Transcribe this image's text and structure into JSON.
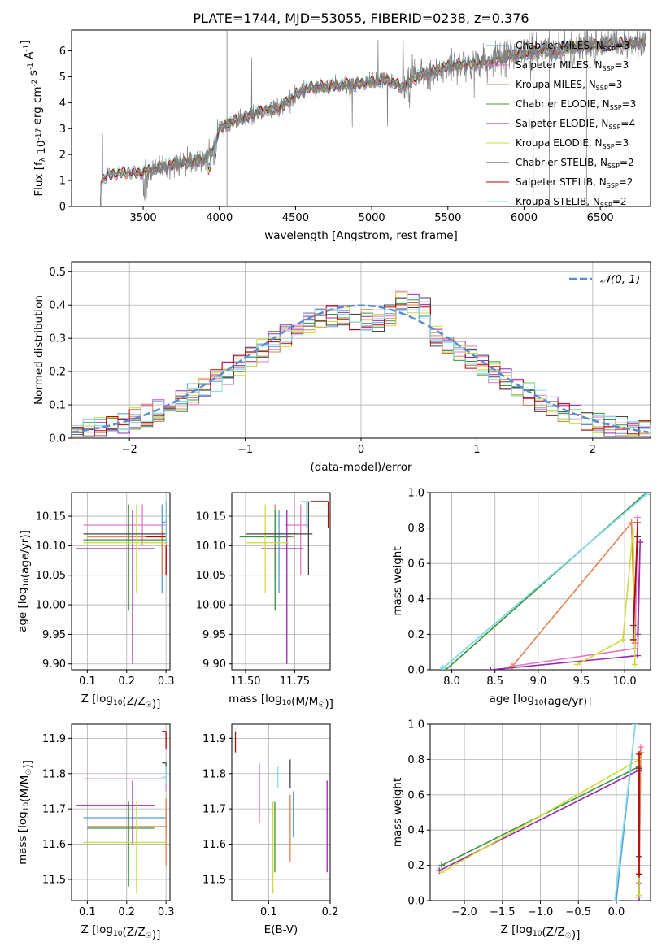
{
  "title": "PLATE=1744, MJD=53055, FIBERID=0238, z=0.376",
  "colors": {
    "Chabrier MILES": "#5b9bd5",
    "Salpeter MILES": "#e377c2",
    "Kroupa MILES": "#dd8452",
    "Chabrier ELODIE": "#3a923a",
    "Salpeter ELODIE": "#9c27b0",
    "Kroupa ELODIE": "#cddc39",
    "Chabrier STELIB": "#444444",
    "Salpeter STELIB": "#c00000",
    "Kroupa STELIB": "#80deea",
    "data": "#808080",
    "gaussian": "#5b8bd0"
  },
  "chart_data": [
    {
      "id": "spectrum",
      "type": "line",
      "xlabel": "wavelength [Angstrom, rest frame]",
      "ylabel": "Flux [f_λ 10^-17 erg cm^-2 s^-1 A^-1]",
      "xlim": [
        3030,
        6830
      ],
      "ylim": [
        0,
        6.8
      ],
      "xticks": [
        3500,
        4000,
        4500,
        5000,
        5500,
        6000,
        6500
      ],
      "yticks": [
        0,
        1,
        2,
        3,
        4,
        5,
        6
      ],
      "grid": false,
      "legend_position": "top-right",
      "legend": [
        {
          "name": "Chabrier MILES",
          "nssp": 3
        },
        {
          "name": "Salpeter MILES",
          "nssp": 3
        },
        {
          "name": "Kroupa MILES",
          "nssp": 3
        },
        {
          "name": "Chabrier ELODIE",
          "nssp": 3
        },
        {
          "name": "Salpeter ELODIE",
          "nssp": 4
        },
        {
          "name": "Kroupa ELODIE",
          "nssp": 3
        },
        {
          "name": "Chabrier STELIB",
          "nssp": 2
        },
        {
          "name": "Salpeter STELIB",
          "nssp": 2
        },
        {
          "name": "Kroupa STELIB",
          "nssp": 2
        }
      ],
      "model_continuum": {
        "x": [
          3220,
          3260,
          3350,
          3500,
          3600,
          3700,
          3800,
          3900,
          3950,
          4000,
          4100,
          4200,
          4300,
          4400,
          4500,
          4600,
          4700,
          4800,
          4900,
          5000,
          5100,
          5200,
          5300,
          5400,
          5500,
          5600,
          5700,
          5800,
          5900,
          6000,
          6100,
          6200,
          6300,
          6400,
          6500,
          6600,
          6700,
          6800
        ],
        "y": [
          0.9,
          1.2,
          1.3,
          1.3,
          1.5,
          1.6,
          1.7,
          1.8,
          2.1,
          3.0,
          3.3,
          3.5,
          3.7,
          3.8,
          4.3,
          4.6,
          4.6,
          4.7,
          4.7,
          4.8,
          4.9,
          4.6,
          5.0,
          5.2,
          5.4,
          5.5,
          5.5,
          5.6,
          5.8,
          5.9,
          6.0,
          6.0,
          6.1,
          6.2,
          6.2,
          6.3,
          6.3,
          6.3
        ]
      }
    },
    {
      "id": "residuals",
      "type": "line",
      "xlabel": "(data-model)/error",
      "ylabel": "Normed distribution",
      "xlim": [
        -2.5,
        2.5
      ],
      "ylim": [
        0,
        0.53
      ],
      "xticks": [
        -2,
        -1,
        0,
        1,
        2
      ],
      "yticks": [
        0.0,
        0.1,
        0.2,
        0.3,
        0.4,
        0.5
      ],
      "grid": true,
      "legend_position": "top-right",
      "legend_label": "𝒩(0, 1)",
      "histogram_bin_width": 0.1,
      "gaussian": {
        "mean": 0,
        "sigma": 1
      }
    },
    {
      "id": "age-vs-Z",
      "type": "scatter",
      "xlabel": "Z [log10(Z/Z☉)]",
      "ylabel": "age [log10(age/yr)]",
      "xlim": [
        0.06,
        0.31
      ],
      "ylim": [
        9.89,
        10.19
      ],
      "xticks": [
        0.1,
        0.2,
        0.3
      ],
      "yticks": [
        9.9,
        9.95,
        10.0,
        10.05,
        10.1,
        10.15
      ],
      "grid": true,
      "points": [
        {
          "model": "Chabrier MILES",
          "x": 0.29,
          "y": 10.14,
          "x_lo": 0.29,
          "x_hi": 0.3,
          "y_lo": 10.02,
          "y_hi": 10.17
        },
        {
          "model": "Salpeter MILES",
          "x": 0.24,
          "y": 10.135,
          "x_lo": 0.09,
          "x_hi": 0.3,
          "y_lo": 10.1,
          "y_hi": 10.17
        },
        {
          "model": "Kroupa MILES",
          "x": 0.29,
          "y": 10.115,
          "x_lo": 0.1,
          "x_hi": 0.3,
          "y_lo": 10.05,
          "y_hi": 10.13
        },
        {
          "model": "Chabrier ELODIE",
          "x": 0.205,
          "y": 10.11,
          "x_lo": 0.09,
          "x_hi": 0.3,
          "y_lo": 9.99,
          "y_hi": 10.17
        },
        {
          "model": "Salpeter ELODIE",
          "x": 0.215,
          "y": 10.095,
          "x_lo": 0.07,
          "x_hi": 0.27,
          "y_lo": 9.9,
          "y_hi": 10.16
        },
        {
          "model": "Kroupa ELODIE",
          "x": 0.225,
          "y": 10.105,
          "x_lo": 0.09,
          "x_hi": 0.3,
          "y_lo": 10.02,
          "y_hi": 10.17
        },
        {
          "model": "Chabrier STELIB",
          "x": 0.3,
          "y": 10.12,
          "x_lo": 0.09,
          "x_hi": 0.3,
          "y_lo": 10.05,
          "y_hi": 10.175
        },
        {
          "model": "Salpeter STELIB",
          "x": 0.3,
          "y": 10.115,
          "x_lo": 0.25,
          "x_hi": 0.3,
          "y_lo": 10.05,
          "y_hi": 10.175
        },
        {
          "model": "Kroupa STELIB",
          "x": 0.3,
          "y": 10.13,
          "x_lo": 0.29,
          "x_hi": 0.3,
          "y_lo": 10.1,
          "y_hi": 10.175
        }
      ]
    },
    {
      "id": "age-vs-mass",
      "type": "scatter",
      "xlabel": "mass [log10(M/M☉)]",
      "ylabel": "",
      "xlim": [
        11.43,
        11.93
      ],
      "ylim": [
        9.89,
        10.19
      ],
      "xticks": [
        11.5,
        11.75
      ],
      "xticklabels": [
        "11.50",
        "11.75"
      ],
      "yticks": [
        9.9,
        9.95,
        10.0,
        10.05,
        10.1,
        10.15
      ],
      "grid": true,
      "points": [
        {
          "model": "Chabrier MILES",
          "x": 11.67,
          "y": 10.12,
          "x_lo": 11.6,
          "x_hi": 11.76,
          "y_lo": 10.02,
          "y_hi": 10.16
        },
        {
          "model": "Salpeter MILES",
          "x": 11.78,
          "y": 10.135,
          "x_lo": 11.7,
          "x_hi": 11.82,
          "y_lo": 10.05,
          "y_hi": 10.17
        },
        {
          "model": "Kroupa MILES",
          "x": 11.65,
          "y": 10.115,
          "x_lo": 11.55,
          "x_hi": 11.75,
          "y_lo": 10.04,
          "y_hi": 10.17
        },
        {
          "model": "Chabrier ELODIE",
          "x": 11.65,
          "y": 10.115,
          "x_lo": 11.47,
          "x_hi": 11.73,
          "y_lo": 9.99,
          "y_hi": 10.16
        },
        {
          "model": "Salpeter ELODIE",
          "x": 11.71,
          "y": 10.095,
          "x_lo": 11.58,
          "x_hi": 11.79,
          "y_lo": 9.9,
          "y_hi": 10.16
        },
        {
          "model": "Kroupa ELODIE",
          "x": 11.6,
          "y": 10.105,
          "x_lo": 11.5,
          "x_hi": 11.72,
          "y_lo": 10.02,
          "y_hi": 10.17
        },
        {
          "model": "Chabrier STELIB",
          "x": 11.82,
          "y": 10.12,
          "x_lo": 11.5,
          "x_hi": 11.84,
          "y_lo": 10.05,
          "y_hi": 10.175
        },
        {
          "model": "Salpeter STELIB",
          "x": 11.92,
          "y": 10.175,
          "x_lo": 11.83,
          "x_hi": 11.92,
          "y_lo": 10.13,
          "y_hi": 10.175
        },
        {
          "model": "Kroupa STELIB",
          "x": 11.81,
          "y": 10.175,
          "x_lo": 11.78,
          "x_hi": 11.83,
          "y_lo": 10.13,
          "y_hi": 10.175
        }
      ]
    },
    {
      "id": "mass-weight-vs-age",
      "type": "line",
      "xlabel": "age [log10(age/yr)]",
      "ylabel": "mass weight",
      "xlim": [
        7.75,
        10.3
      ],
      "ylim": [
        0,
        1.0
      ],
      "xticks": [
        8.0,
        8.5,
        9.0,
        9.5,
        10.0
      ],
      "yticks": [
        0.0,
        0.2,
        0.4,
        0.6,
        0.8,
        1.0
      ],
      "grid": true,
      "series": [
        {
          "name": "Chabrier MILES",
          "x": [
            7.9,
            10.25
          ],
          "y": [
            0.01,
            0.99
          ]
        },
        {
          "name": "Salpeter MILES",
          "x": [
            8.7,
            10.12,
            10.15
          ],
          "y": [
            0.02,
            0.12,
            0.86
          ]
        },
        {
          "name": "Kroupa MILES",
          "x": [
            8.7,
            10.08,
            10.12
          ],
          "y": [
            0.02,
            0.83,
            0.15
          ]
        },
        {
          "name": "Chabrier ELODIE",
          "x": [
            7.93,
            10.25
          ],
          "y": [
            0.0,
            1.0
          ]
        },
        {
          "name": "Salpeter ELODIE",
          "x": [
            8.45,
            10.15,
            10.18,
            10.15
          ],
          "y": [
            0.0,
            0.08,
            0.72,
            0.2
          ]
        },
        {
          "name": "Kroupa ELODIE",
          "x": [
            9.45,
            9.98,
            10.1,
            10.12
          ],
          "y": [
            0.03,
            0.17,
            0.8,
            0.03
          ]
        },
        {
          "name": "Chabrier STELIB",
          "x": [
            10.1,
            10.15
          ],
          "y": [
            0.25,
            0.75
          ]
        },
        {
          "name": "Salpeter STELIB",
          "x": [
            10.1,
            10.15
          ],
          "y": [
            0.17,
            0.83
          ]
        },
        {
          "name": "Kroupa STELIB",
          "x": [
            7.9,
            10.25
          ],
          "y": [
            0.01,
            0.99
          ]
        }
      ]
    },
    {
      "id": "mass-vs-Z",
      "type": "scatter",
      "xlabel": "Z [log10(Z/Z☉)]",
      "ylabel": "mass [log10(M/M☉)]",
      "xlim": [
        0.06,
        0.31
      ],
      "ylim": [
        11.44,
        11.94
      ],
      "xticks": [
        0.1,
        0.2,
        0.3
      ],
      "yticks": [
        11.5,
        11.6,
        11.7,
        11.8,
        11.9
      ],
      "grid": true,
      "points": [
        {
          "model": "Chabrier MILES",
          "x": 0.3,
          "y": 11.675,
          "x_lo": 0.09,
          "x_hi": 0.3,
          "y_lo": 11.62,
          "y_hi": 11.72
        },
        {
          "model": "Salpeter MILES",
          "x": 0.3,
          "y": 11.785,
          "x_lo": 0.09,
          "x_hi": 0.3,
          "y_lo": 11.75,
          "y_hi": 11.82
        },
        {
          "model": "Kroupa MILES",
          "x": 0.3,
          "y": 11.65,
          "x_lo": 0.1,
          "x_hi": 0.3,
          "y_lo": 11.54,
          "y_hi": 11.73
        },
        {
          "model": "Chabrier ELODIE",
          "x": 0.205,
          "y": 11.645,
          "x_lo": 0.1,
          "x_hi": 0.27,
          "y_lo": 11.48,
          "y_hi": 11.72
        },
        {
          "model": "Salpeter ELODIE",
          "x": 0.215,
          "y": 11.71,
          "x_lo": 0.07,
          "x_hi": 0.27,
          "y_lo": 11.6,
          "y_hi": 11.78
        },
        {
          "model": "Kroupa ELODIE",
          "x": 0.225,
          "y": 11.605,
          "x_lo": 0.09,
          "x_hi": 0.3,
          "y_lo": 11.46,
          "y_hi": 11.72
        },
        {
          "model": "Chabrier STELIB",
          "x": 0.3,
          "y": 11.83,
          "x_lo": 0.29,
          "x_hi": 0.3,
          "y_lo": 11.8,
          "y_hi": 11.83
        },
        {
          "model": "Salpeter STELIB",
          "x": 0.3,
          "y": 11.92,
          "x_lo": 0.29,
          "x_hi": 0.3,
          "y_lo": 11.87,
          "y_hi": 11.92
        },
        {
          "model": "Kroupa STELIB",
          "x": 0.3,
          "y": 11.79,
          "x_lo": 0.29,
          "x_hi": 0.3,
          "y_lo": 11.77,
          "y_hi": 11.82
        }
      ]
    },
    {
      "id": "mass-vs-EBV",
      "type": "scatter",
      "xlabel": "E(B-V)",
      "ylabel": "",
      "xlim": [
        0.04,
        0.2
      ],
      "ylim": [
        11.44,
        11.94
      ],
      "xticks": [
        0.1,
        0.2
      ],
      "yticks": [
        11.5,
        11.6,
        11.7,
        11.8,
        11.9
      ],
      "grid": true,
      "points": [
        {
          "model": "Chabrier MILES",
          "x": 0.14,
          "y": 11.68,
          "y_lo": 11.62,
          "y_hi": 11.75
        },
        {
          "model": "Salpeter MILES",
          "x": 0.085,
          "y": 11.75,
          "y_lo": 11.66,
          "y_hi": 11.83
        },
        {
          "model": "Kroupa MILES",
          "x": 0.135,
          "y": 11.65,
          "y_lo": 11.55,
          "y_hi": 11.74
        },
        {
          "model": "Chabrier ELODIE",
          "x": 0.11,
          "y": 11.64,
          "y_lo": 11.52,
          "y_hi": 11.72
        },
        {
          "model": "Salpeter ELODIE",
          "x": 0.195,
          "y": 11.7,
          "y_lo": 11.52,
          "y_hi": 11.78
        },
        {
          "model": "Kroupa ELODIE",
          "x": 0.107,
          "y": 11.6,
          "y_lo": 11.46,
          "y_hi": 11.72
        },
        {
          "model": "Chabrier STELIB",
          "x": 0.135,
          "y": 11.8,
          "y_lo": 11.76,
          "y_hi": 11.84
        },
        {
          "model": "Salpeter STELIB",
          "x": 0.046,
          "y": 11.89,
          "y_lo": 11.86,
          "y_hi": 11.92
        },
        {
          "model": "Kroupa STELIB",
          "x": 0.115,
          "y": 11.79,
          "y_lo": 11.76,
          "y_hi": 11.82
        }
      ]
    },
    {
      "id": "mass-weight-vs-Z",
      "type": "line",
      "xlabel": "Z [log10(Z/Z☉)]",
      "ylabel": "mass weight",
      "xlim": [
        -2.45,
        0.45
      ],
      "ylim": [
        0,
        1.0
      ],
      "xticks": [
        -2.0,
        -1.5,
        -1.0,
        -0.5,
        0.0
      ],
      "yticks": [
        0.0,
        0.2,
        0.4,
        0.6,
        0.8,
        1.0
      ],
      "grid": true,
      "series": [
        {
          "name": "Chabrier MILES",
          "x": [
            0.0,
            0.25
          ],
          "y": [
            0.0,
            1.0
          ]
        },
        {
          "name": "Salpeter MILES",
          "x": [
            0.3,
            0.32,
            0.3
          ],
          "y": [
            0.02,
            0.87,
            0.1
          ]
        },
        {
          "name": "Kroupa MILES",
          "x": [
            0.3,
            0.32
          ],
          "y": [
            0.15,
            0.84
          ]
        },
        {
          "name": "Chabrier ELODIE",
          "x": [
            -2.3,
            0.3,
            0.3
          ],
          "y": [
            0.2,
            0.76,
            0.02
          ]
        },
        {
          "name": "Salpeter ELODIE",
          "x": [
            -2.33,
            0.3,
            0.3
          ],
          "y": [
            0.17,
            0.74,
            0.0
          ]
        },
        {
          "name": "Kroupa ELODIE",
          "x": [
            -2.3,
            0.3,
            0.3
          ],
          "y": [
            0.16,
            0.8,
            0.03
          ]
        },
        {
          "name": "Chabrier STELIB",
          "x": [
            0.3,
            0.3
          ],
          "y": [
            0.25,
            0.75
          ]
        },
        {
          "name": "Salpeter STELIB",
          "x": [
            0.3,
            0.3
          ],
          "y": [
            0.15,
            0.83
          ]
        },
        {
          "name": "Kroupa STELIB",
          "x": [
            -0.02,
            0.25
          ],
          "y": [
            0.0,
            1.0
          ]
        }
      ]
    }
  ]
}
